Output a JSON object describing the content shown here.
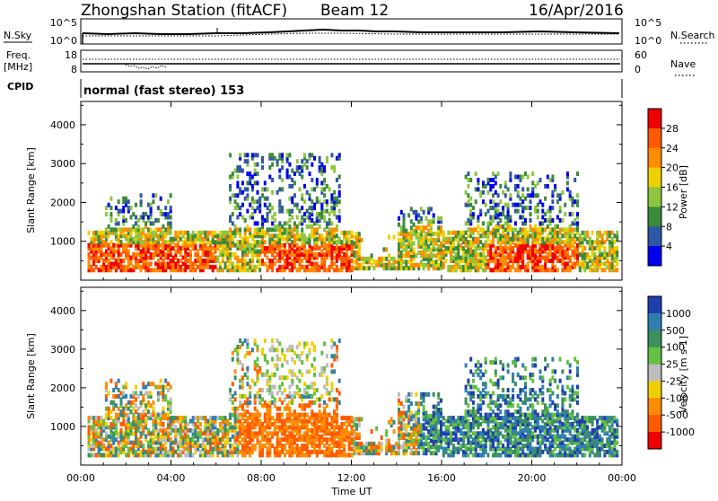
{
  "header": {
    "station": "Zhongshan Station (fitACF)",
    "beam": "Beam 12",
    "date": "16/Apr/2016"
  },
  "sky_panel": {
    "left_label": "N.Sky",
    "right_label": "N.Search",
    "left_ticks": [
      "10^5",
      "10^0"
    ],
    "right_ticks": [
      "10^5",
      "10^0"
    ]
  },
  "freq_panel": {
    "left_label_1": "Freq.",
    "left_label_2": "[MHz]",
    "left_ticks": [
      "18",
      "8"
    ],
    "right_label": "Nave",
    "right_ticks": [
      "60",
      "0"
    ]
  },
  "cpid": {
    "label": "CPID",
    "mode": "normal (fast stereo) 153"
  },
  "chart_data": [
    {
      "type": "heatmap",
      "title": "Power [dB]",
      "ylabel": "Slant Range [km]",
      "xlabel": "Time UT",
      "xlim": [
        "00:00",
        "24:00"
      ],
      "ylim": [
        0,
        4600
      ],
      "y_ticks": [
        1000,
        2000,
        3000,
        4000
      ],
      "x_tick_labels": [
        "00:00",
        "04:00",
        "08:00",
        "12:00",
        "16:00",
        "20:00",
        "00:00"
      ],
      "colorbar": {
        "label": "Power [dB]",
        "ticks": [
          "28",
          "24",
          "20",
          "16",
          "12",
          "8",
          "4"
        ],
        "colors": [
          "#ee0000",
          "#ff5a00",
          "#ff8c00",
          "#eed000",
          "#8ec63f",
          "#3c8a3c",
          "#2f57a8",
          "#0000ee"
        ]
      }
    },
    {
      "type": "heatmap",
      "title": "Velocity [m s-1]",
      "ylabel": "Slant Range [km]",
      "xlabel": "Time UT",
      "xlim": [
        "00:00",
        "24:00"
      ],
      "ylim": [
        0,
        4600
      ],
      "y_ticks": [
        1000,
        2000,
        3000,
        4000
      ],
      "x_tick_labels": [
        "00:00",
        "04:00",
        "08:00",
        "12:00",
        "16:00",
        "20:00",
        "00:00"
      ],
      "colorbar": {
        "label": "Velocity [m s-1]",
        "ticks": [
          "1000",
          "500",
          "100",
          "25",
          "-25",
          "-100",
          "-500",
          "-1000"
        ],
        "colors": [
          "#1f3fae",
          "#2f7fb0",
          "#3d8f60",
          "#63c040",
          "#bdbdbd",
          "#eed000",
          "#ff8c00",
          "#ff5a00",
          "#ee0000"
        ]
      }
    }
  ]
}
